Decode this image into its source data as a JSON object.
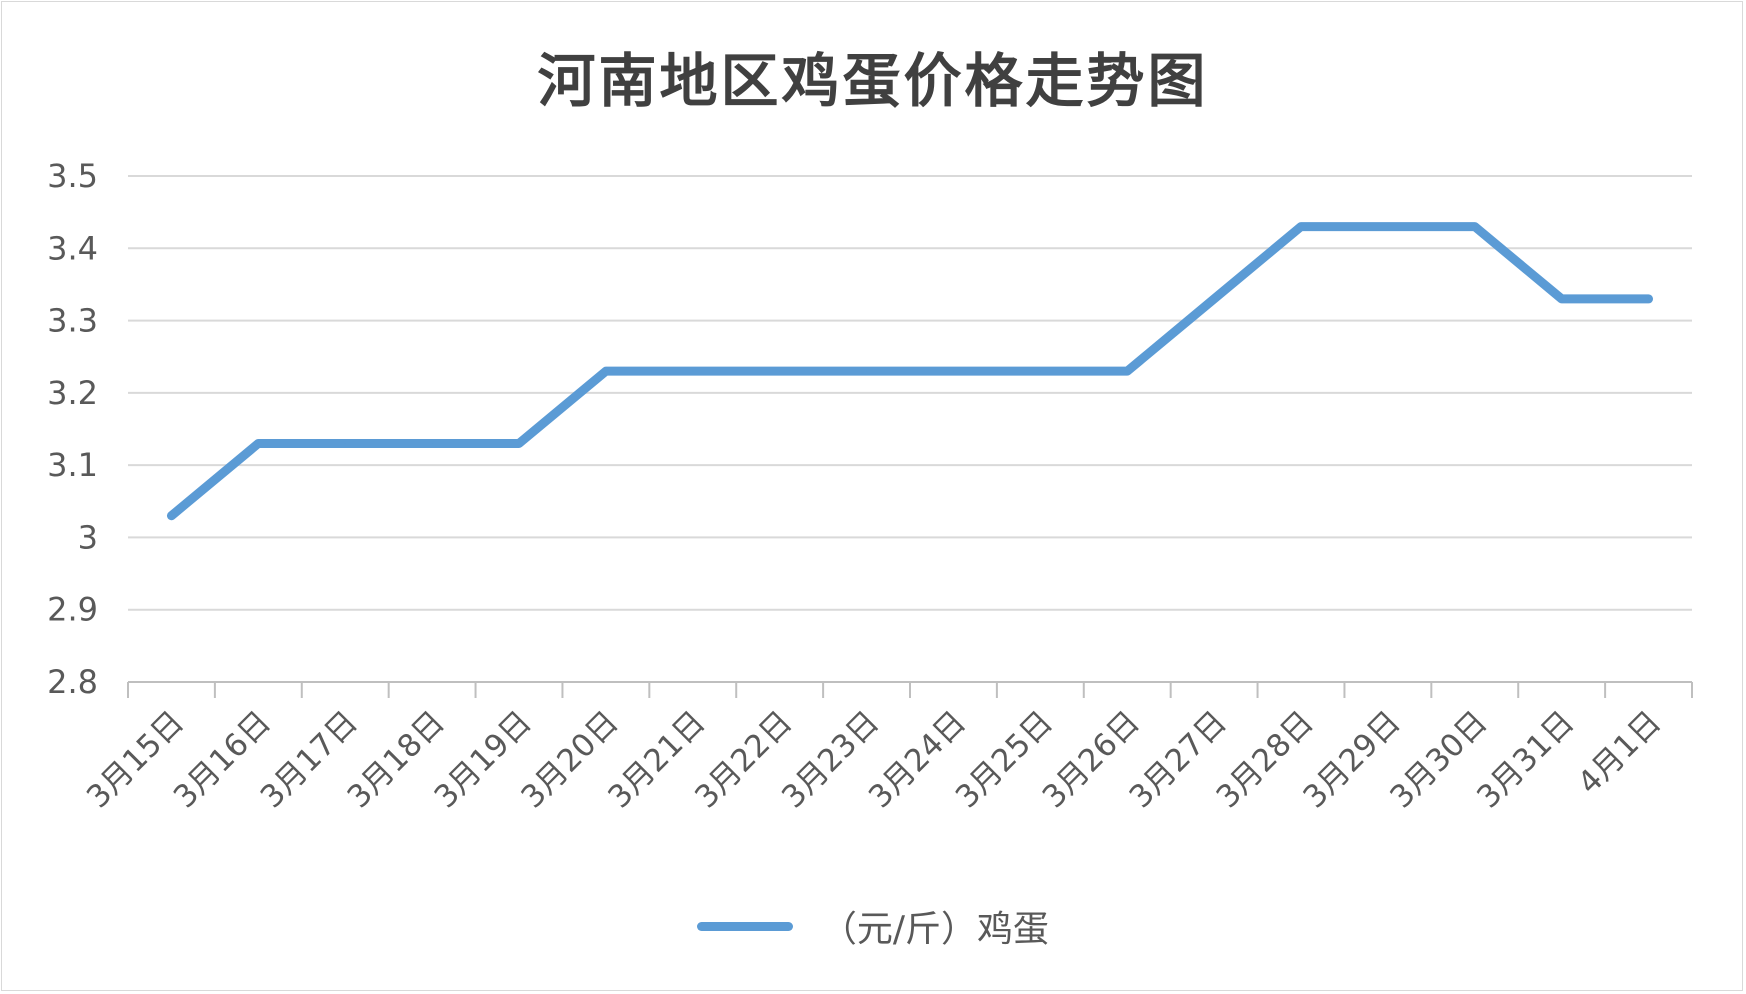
{
  "chart_data": {
    "type": "line",
    "title": "河南地区鸡蛋价格走势图",
    "categories": [
      "3月15日",
      "3月16日",
      "3月17日",
      "3月18日",
      "3月19日",
      "3月20日",
      "3月21日",
      "3月22日",
      "3月23日",
      "3月24日",
      "3月25日",
      "3月26日",
      "3月27日",
      "3月28日",
      "3月29日",
      "3月30日",
      "3月31日",
      "4月1日"
    ],
    "series": [
      {
        "name": "（元/斤）鸡蛋",
        "color": "#5b9bd5",
        "values": [
          3.03,
          3.13,
          3.13,
          3.13,
          3.13,
          3.23,
          3.23,
          3.23,
          3.23,
          3.23,
          3.23,
          3.23,
          3.33,
          3.43,
          3.43,
          3.43,
          3.33,
          3.33
        ]
      }
    ],
    "y_ticks": [
      "2.8",
      "2.9",
      "3",
      "3.1",
      "3.2",
      "3.3",
      "3.4",
      "3.5"
    ],
    "ylim": [
      2.8,
      3.5
    ],
    "grid": true,
    "legend_position": "bottom",
    "xlabel": "",
    "ylabel": ""
  }
}
